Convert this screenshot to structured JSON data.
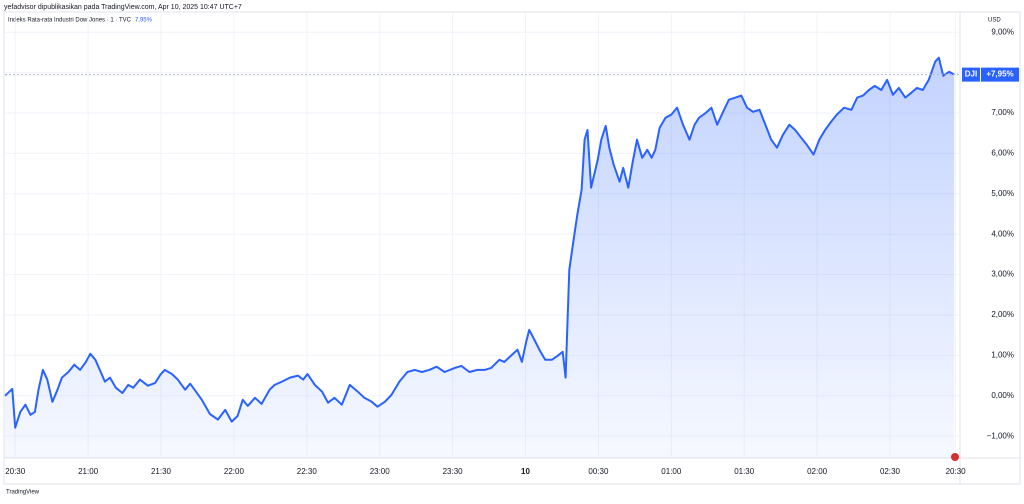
{
  "header": "yefadvisor dipublikasikan pada TradingView.com, Apr 10, 2025 10:47 UTC+7",
  "footer": "TradingView",
  "chart_data": {
    "type": "line",
    "title": "Indeks Rata-rata Industri Dow Jones · 1 · TVC",
    "title_value": "7,95%",
    "currency": "USD",
    "symbol": "DJI",
    "last_value": 7.95,
    "last_value_label": "+7,95%",
    "series": [
      {
        "name": "DJI",
        "color": "#2962ff",
        "x": [
          -0.14,
          -0.04,
          0,
          0.07,
          0.14,
          0.21,
          0.27,
          0.32,
          0.38,
          0.44,
          0.51,
          0.58,
          0.64,
          0.73,
          0.81,
          0.89,
          0.97,
          1.03,
          1.1,
          1.16,
          1.23,
          1.3,
          1.38,
          1.47,
          1.55,
          1.62,
          1.71,
          1.82,
          1.92,
          1.99,
          2.05,
          2.15,
          2.23,
          2.33,
          2.4,
          2.48,
          2.56,
          2.67,
          2.78,
          2.88,
          2.97,
          3.05,
          3.12,
          3.19,
          3.29,
          3.38,
          3.49,
          3.56,
          3.66,
          3.77,
          3.88,
          3.95,
          4.01,
          4.11,
          4.21,
          4.29,
          4.38,
          4.48,
          4.59,
          4.7,
          4.79,
          4.89,
          4.97,
          5.07,
          5.16,
          5.27,
          5.38,
          5.48,
          5.58,
          5.68,
          5.78,
          5.89,
          6.03,
          6.12,
          6.23,
          6.34,
          6.44,
          6.53,
          6.64,
          6.71,
          6.81,
          6.89,
          6.95,
          7.01,
          7.05,
          7.12,
          7.19,
          7.27,
          7.36,
          7.44,
          7.51,
          7.55,
          7.6,
          7.66,
          7.71,
          7.77,
          7.81,
          7.85,
          7.9,
          7.99,
          8.04,
          8.1,
          8.15,
          8.21,
          8.29,
          8.34,
          8.41,
          8.47,
          8.53,
          8.6,
          8.67,
          8.73,
          8.78,
          8.84,
          8.92,
          9.0,
          9.08,
          9.16,
          9.25,
          9.32,
          9.38,
          9.47,
          9.55,
          9.63,
          9.71,
          9.79,
          9.88,
          9.96,
          10.04,
          10.12,
          10.21,
          10.29,
          10.37,
          10.45,
          10.53,
          10.62,
          10.7,
          10.78,
          10.86,
          10.95,
          11.03,
          11.11,
          11.19,
          11.27,
          11.37,
          11.47,
          11.55,
          11.63,
          11.71,
          11.79,
          11.88,
          11.96,
          12.04,
          12.12,
          12.21,
          12.29,
          12.37,
          12.45,
          12.53,
          12.62,
          12.67,
          12.73,
          12.81,
          12.88
        ],
        "values": [
          0,
          0.17,
          -0.79,
          -0.4,
          -0.22,
          -0.47,
          -0.4,
          0.15,
          0.64,
          0.4,
          -0.15,
          0.15,
          0.45,
          0.59,
          0.77,
          0.64,
          0.84,
          1.04,
          0.89,
          0.64,
          0.35,
          0.45,
          0.2,
          0.07,
          0.27,
          0.2,
          0.4,
          0.25,
          0.32,
          0.52,
          0.64,
          0.54,
          0.4,
          0.15,
          0.3,
          0.1,
          -0.1,
          -0.45,
          -0.59,
          -0.35,
          -0.64,
          -0.5,
          -0.1,
          -0.25,
          -0.05,
          -0.2,
          0.15,
          0.27,
          0.35,
          0.45,
          0.5,
          0.4,
          0.54,
          0.27,
          0.1,
          -0.17,
          -0.05,
          -0.22,
          0.27,
          0.1,
          -0.05,
          -0.15,
          -0.27,
          -0.15,
          0.02,
          0.35,
          0.59,
          0.64,
          0.59,
          0.64,
          0.72,
          0.59,
          0.69,
          0.74,
          0.59,
          0.64,
          0.64,
          0.69,
          0.89,
          0.84,
          1.01,
          1.14,
          0.84,
          1.34,
          1.63,
          1.39,
          1.14,
          0.89,
          0.89,
          0.99,
          1.09,
          0.45,
          3.12,
          3.86,
          4.48,
          5.1,
          6.34,
          6.58,
          5.15,
          5.84,
          6.34,
          6.68,
          6.14,
          5.72,
          5.3,
          5.64,
          5.15,
          5.79,
          6.34,
          5.89,
          6.09,
          5.89,
          6.09,
          6.63,
          6.88,
          6.96,
          7.13,
          6.71,
          6.34,
          6.71,
          6.88,
          7.0,
          7.13,
          6.71,
          7.03,
          7.33,
          7.38,
          7.43,
          7.13,
          7.03,
          7.08,
          6.71,
          6.34,
          6.14,
          6.46,
          6.71,
          6.58,
          6.39,
          6.21,
          5.97,
          6.34,
          6.58,
          6.78,
          6.96,
          7.13,
          7.08,
          7.38,
          7.43,
          7.57,
          7.67,
          7.57,
          7.82,
          7.45,
          7.62,
          7.38,
          7.5,
          7.62,
          7.57,
          7.82,
          8.27,
          8.37,
          7.92,
          8.02,
          7.95
        ]
      }
    ],
    "xlim": [
      -0.14,
      12.96
    ],
    "xticks": [
      {
        "value": 0,
        "label": "20:30"
      },
      {
        "value": 1,
        "label": "21:00"
      },
      {
        "value": 2,
        "label": "21:30"
      },
      {
        "value": 3,
        "label": "22:00"
      },
      {
        "value": 4,
        "label": "22:30"
      },
      {
        "value": 5,
        "label": "23:00"
      },
      {
        "value": 6,
        "label": "23:30"
      },
      {
        "value": 7,
        "label": "10"
      },
      {
        "value": 8,
        "label": "00:30"
      },
      {
        "value": 9,
        "label": "01:00"
      },
      {
        "value": 10,
        "label": "01:30"
      },
      {
        "value": 11,
        "label": "02:00"
      },
      {
        "value": 12,
        "label": "02:30"
      },
      {
        "value": 12.9,
        "label": "20:30"
      }
    ],
    "ylim": [
      -1.54,
      9.5
    ],
    "yticks": [
      {
        "value": -1,
        "label": "−1,00%"
      },
      {
        "value": 0,
        "label": "0,00%"
      },
      {
        "value": 1,
        "label": "1,00%"
      },
      {
        "value": 2,
        "label": "2,00%"
      },
      {
        "value": 3,
        "label": "3,00%"
      },
      {
        "value": 4,
        "label": "4,00%"
      },
      {
        "value": 5,
        "label": "5,00%"
      },
      {
        "value": 6,
        "label": "6,00%"
      },
      {
        "value": 7,
        "label": "7,00%"
      },
      {
        "value": 8,
        "label": "8,00%"
      },
      {
        "value": 9,
        "label": "9,00%"
      }
    ],
    "grid": true
  }
}
